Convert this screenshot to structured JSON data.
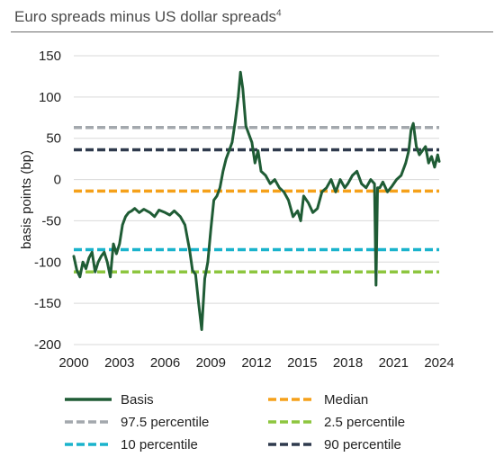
{
  "header": {
    "title": "Euro spreads minus US dollar spreads",
    "footnote": "4"
  },
  "chart_data": {
    "type": "line",
    "title": "Euro spreads minus US dollar spreads",
    "xlabel": "",
    "ylabel": "basis points (bp)",
    "xlim": [
      2000,
      2024
    ],
    "ylim": [
      -200,
      150
    ],
    "xticks": [
      2000,
      2003,
      2006,
      2009,
      2012,
      2015,
      2018,
      2021,
      2024
    ],
    "yticks": [
      -200,
      -150,
      -100,
      -50,
      0,
      50,
      100,
      150
    ],
    "grid": "horizontal",
    "legend_position": "bottom",
    "series": [
      {
        "name": "Basis",
        "color": "#1f5c35",
        "x": [
          2000.0,
          2000.2,
          2000.4,
          2000.6,
          2000.8,
          2001.0,
          2001.2,
          2001.4,
          2001.6,
          2001.8,
          2002.0,
          2002.2,
          2002.4,
          2002.6,
          2002.8,
          2003.0,
          2003.2,
          2003.4,
          2003.6,
          2003.8,
          2004.0,
          2004.3,
          2004.6,
          2005.0,
          2005.3,
          2005.6,
          2006.0,
          2006.3,
          2006.6,
          2007.0,
          2007.3,
          2007.6,
          2007.8,
          2008.0,
          2008.2,
          2008.4,
          2008.6,
          2008.8,
          2009.0,
          2009.2,
          2009.4,
          2009.6,
          2009.8,
          2010.0,
          2010.2,
          2010.4,
          2010.6,
          2010.8,
          2010.95,
          2011.1,
          2011.3,
          2011.5,
          2011.7,
          2011.9,
          2012.1,
          2012.3,
          2012.6,
          2012.9,
          2013.2,
          2013.5,
          2013.8,
          2014.1,
          2014.4,
          2014.7,
          2014.9,
          2015.1,
          2015.4,
          2015.7,
          2016.0,
          2016.3,
          2016.6,
          2016.9,
          2017.2,
          2017.5,
          2017.8,
          2018.0,
          2018.3,
          2018.6,
          2018.9,
          2019.2,
          2019.5,
          2019.75,
          2019.85,
          2019.95,
          2020.1,
          2020.3,
          2020.6,
          2020.9,
          2021.2,
          2021.5,
          2021.8,
          2022.0,
          2022.15,
          2022.3,
          2022.5,
          2022.7,
          2022.9,
          2023.1,
          2023.3,
          2023.5,
          2023.7,
          2023.9,
          2024.0
        ],
        "values": [
          -93,
          -110,
          -118,
          -100,
          -108,
          -95,
          -88,
          -112,
          -100,
          -93,
          -88,
          -100,
          -118,
          -78,
          -90,
          -78,
          -55,
          -45,
          -40,
          -38,
          -35,
          -40,
          -36,
          -40,
          -45,
          -37,
          -40,
          -43,
          -38,
          -45,
          -55,
          -85,
          -110,
          -115,
          -150,
          -182,
          -120,
          -100,
          -60,
          -25,
          -20,
          -10,
          10,
          25,
          35,
          45,
          70,
          100,
          130,
          110,
          65,
          55,
          45,
          20,
          35,
          10,
          5,
          -5,
          0,
          -10,
          -15,
          -25,
          -45,
          -38,
          -50,
          -20,
          -28,
          -40,
          -35,
          -15,
          -10,
          0,
          -15,
          0,
          -10,
          -5,
          5,
          10,
          -5,
          -10,
          0,
          -5,
          -128,
          -10,
          -10,
          -3,
          -15,
          -8,
          0,
          5,
          20,
          35,
          60,
          68,
          40,
          30,
          35,
          40,
          20,
          28,
          15,
          30,
          22
        ]
      }
    ],
    "reference_lines": [
      {
        "name": "Median",
        "value": -14,
        "color": "#f5a11a"
      },
      {
        "name": "97.5 percentile",
        "value": 63,
        "color": "#a3a8ad"
      },
      {
        "name": "2.5 percentile",
        "value": -112,
        "color": "#8dc63f"
      },
      {
        "name": "10 percentile",
        "value": -85,
        "color": "#1ab3cc"
      },
      {
        "name": "90 percentile",
        "value": 36,
        "color": "#2f3a4d"
      }
    ],
    "legend": [
      {
        "label": "Basis",
        "key": "basis",
        "color": "#1f5c35",
        "style": "solid"
      },
      {
        "label": "Median",
        "key": "median",
        "color": "#f5a11a",
        "style": "dashed"
      },
      {
        "label": "97.5 percentile",
        "key": "p975",
        "color": "#a3a8ad",
        "style": "dashed"
      },
      {
        "label": "2.5 percentile",
        "key": "p25",
        "color": "#8dc63f",
        "style": "dashed"
      },
      {
        "label": "10 percentile",
        "key": "p10",
        "color": "#1ab3cc",
        "style": "dashed"
      },
      {
        "label": "90 percentile",
        "key": "p90",
        "color": "#2f3a4d",
        "style": "dashed"
      }
    ]
  }
}
